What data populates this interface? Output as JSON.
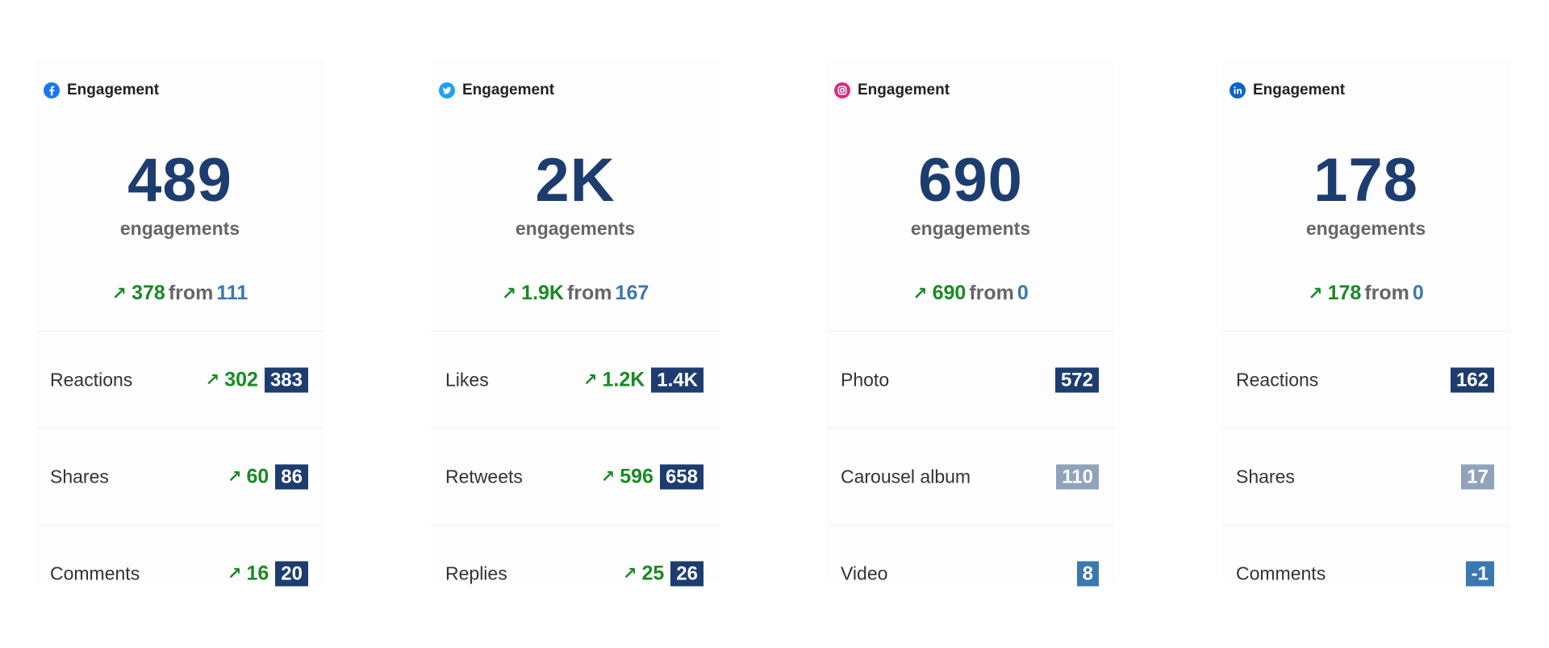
{
  "colors": {
    "number": "#1d3d70",
    "up": "#198a24",
    "from_value": "#3a78b0",
    "badge_dark": "#1d3d70",
    "badge_light": "#8fa3bb",
    "badge_mid": "#3a78b0"
  },
  "cards": [
    {
      "network": "facebook",
      "icon": "facebook-icon",
      "title": "Engagement",
      "total": "489",
      "total_label": "engagements",
      "change_arrow": "↗",
      "change": "378",
      "from_word": "from",
      "from_value": "111",
      "rows": [
        {
          "label": "Reactions",
          "arrow": "↗",
          "delta": "302",
          "value": "383",
          "badge_color": "#1d3d70"
        },
        {
          "label": "Shares",
          "arrow": "↗",
          "delta": "60",
          "value": "86",
          "badge_color": "#1d3d70"
        },
        {
          "label": "Comments",
          "arrow": "↗",
          "delta": "16",
          "value": "20",
          "badge_color": "#1d3d70"
        }
      ]
    },
    {
      "network": "twitter",
      "icon": "twitter-icon",
      "title": "Engagement",
      "total": "2K",
      "total_label": "engagements",
      "change_arrow": "↗",
      "change": "1.9K",
      "from_word": "from",
      "from_value": "167",
      "rows": [
        {
          "label": "Likes",
          "arrow": "↗",
          "delta": "1.2K",
          "value": "1.4K",
          "badge_color": "#1d3d70"
        },
        {
          "label": "Retweets",
          "arrow": "↗",
          "delta": "596",
          "value": "658",
          "badge_color": "#1d3d70"
        },
        {
          "label": "Replies",
          "arrow": "↗",
          "delta": "25",
          "value": "26",
          "badge_color": "#1d3d70"
        }
      ]
    },
    {
      "network": "instagram",
      "icon": "instagram-icon",
      "title": "Engagement",
      "total": "690",
      "total_label": "engagements",
      "change_arrow": "↗",
      "change": "690",
      "from_word": "from",
      "from_value": "0",
      "rows": [
        {
          "label": "Photo",
          "arrow": "",
          "delta": "",
          "value": "572",
          "badge_color": "#1d3d70"
        },
        {
          "label": "Carousel album",
          "arrow": "",
          "delta": "",
          "value": "110",
          "badge_color": "#8fa3bb"
        },
        {
          "label": "Video",
          "arrow": "",
          "delta": "",
          "value": "8",
          "badge_color": "#3a78b0"
        }
      ]
    },
    {
      "network": "linkedin",
      "icon": "linkedin-icon",
      "title": "Engagement",
      "total": "178",
      "total_label": "engagements",
      "change_arrow": "↗",
      "change": "178",
      "from_word": "from",
      "from_value": "0",
      "rows": [
        {
          "label": "Reactions",
          "arrow": "",
          "delta": "",
          "value": "162",
          "badge_color": "#1d3d70"
        },
        {
          "label": "Shares",
          "arrow": "",
          "delta": "",
          "value": "17",
          "badge_color": "#8fa3bb"
        },
        {
          "label": "Comments",
          "arrow": "",
          "delta": "",
          "value": "-1",
          "badge_color": "#3a78b0"
        }
      ]
    }
  ]
}
